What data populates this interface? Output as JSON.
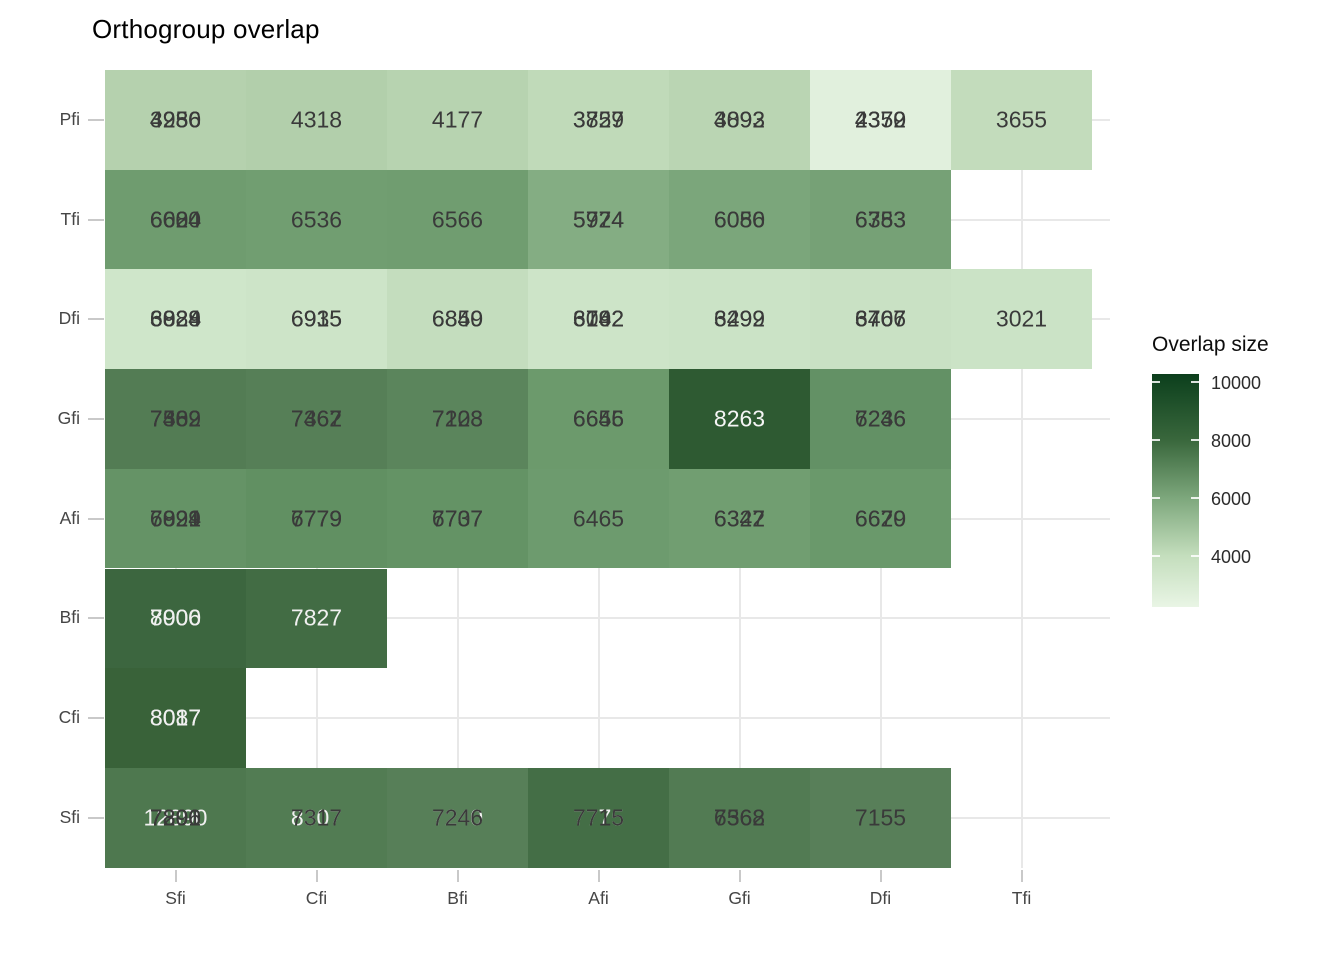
{
  "title": "Orthogroup overlap",
  "legend": {
    "title": "Overlap size",
    "tick_labels": [
      "10000",
      "8000",
      "6000",
      "4000"
    ],
    "gradient_dark": "#0c3e1c",
    "gradient_mid": "#7da77c",
    "gradient_light": "#e9f5e5"
  },
  "chart_data": {
    "type": "heatmap",
    "title": "Orthogroup overlap",
    "legend_title": "Overlap size",
    "x_categories": [
      "Sfi",
      "Cfi",
      "Bfi",
      "Afi",
      "Gfi",
      "Dfi",
      "Tfi"
    ],
    "y_categories": [
      "Pfi",
      "Tfi",
      "Dfi",
      "Gfi",
      "Afi",
      "Bfi",
      "Cfi",
      "Sfi"
    ],
    "colorbar_ticks": [
      10000,
      8000,
      6000,
      4000
    ],
    "grid": true,
    "legend_position": "right",
    "note": "Cells contain overplotted value labels drawn on top of each other; labels listed bottom-first in draw order.",
    "cells": [
      {
        "row": "Pfi",
        "col": "Sfi",
        "bg": "#b5d1ae",
        "labels": [
          {
            "text": "4250",
            "color": "#3a3a3a"
          },
          {
            "text": "3986",
            "color": "#3a3a3a"
          },
          {
            "text": "4236",
            "color": "#3a3a3a"
          }
        ]
      },
      {
        "row": "Pfi",
        "col": "Cfi",
        "bg": "#b2cfab",
        "labels": [
          {
            "text": "4318",
            "color": "#3a3a3a"
          }
        ]
      },
      {
        "row": "Pfi",
        "col": "Bfi",
        "bg": "#b7d3b0",
        "labels": [
          {
            "text": "4177",
            "color": "#3a3a3a"
          }
        ]
      },
      {
        "row": "Pfi",
        "col": "Afi",
        "bg": "#c0dab9",
        "labels": [
          {
            "text": "3829",
            "color": "#3a3a3a"
          },
          {
            "text": "3757",
            "color": "#3a3a3a"
          }
        ]
      },
      {
        "row": "Pfi",
        "col": "Gfi",
        "bg": "#bad5b3",
        "labels": [
          {
            "text": "4092",
            "color": "#3a3a3a"
          },
          {
            "text": "3893",
            "color": "#3a3a3a"
          }
        ]
      },
      {
        "row": "Pfi",
        "col": "Dfi",
        "bg": "#e1f0dd",
        "labels": [
          {
            "text": "4379",
            "color": "#3a3a3a"
          },
          {
            "text": "4352",
            "color": "#3a3a3a"
          },
          {
            "text": "2370",
            "color": "#3a3a3a"
          }
        ]
      },
      {
        "row": "Pfi",
        "col": "Tfi",
        "bg": "#c3dcbc",
        "labels": [
          {
            "text": "3655",
            "color": "#3a3a3a"
          }
        ]
      },
      {
        "row": "Tfi",
        "col": "Sfi",
        "bg": "#6f9c6f",
        "labels": [
          {
            "text": "6600",
            "color": "#3a3a3a"
          },
          {
            "text": "6684",
            "color": "#3a3a3a"
          },
          {
            "text": "6024",
            "color": "#3a3a3a"
          }
        ]
      },
      {
        "row": "Tfi",
        "col": "Cfi",
        "bg": "#719e71",
        "labels": [
          {
            "text": "6536",
            "color": "#3a3a3a"
          }
        ]
      },
      {
        "row": "Tfi",
        "col": "Bfi",
        "bg": "#709d70",
        "labels": [
          {
            "text": "6566",
            "color": "#3a3a3a"
          }
        ]
      },
      {
        "row": "Tfi",
        "col": "Afi",
        "bg": "#84ad83",
        "labels": [
          {
            "text": "5974",
            "color": "#3a3a3a"
          },
          {
            "text": "5724",
            "color": "#3a3a3a"
          }
        ]
      },
      {
        "row": "Tfi",
        "col": "Gfi",
        "bg": "#7ba67b",
        "labels": [
          {
            "text": "6086",
            "color": "#3a3a3a"
          },
          {
            "text": "6050",
            "color": "#3a3a3a"
          }
        ]
      },
      {
        "row": "Tfi",
        "col": "Dfi",
        "bg": "#76a176",
        "labels": [
          {
            "text": "6383",
            "color": "#3a3a3a"
          },
          {
            "text": "6753",
            "color": "#3a3a3a"
          }
        ]
      },
      {
        "row": "Dfi",
        "col": "Sfi",
        "bg": "#cfe6ca",
        "labels": [
          {
            "text": "6888",
            "color": "#3a3a3a"
          },
          {
            "text": "6929",
            "color": "#3a3a3a"
          },
          {
            "text": "6824",
            "color": "#3a3a3a"
          },
          {
            "text": "3024",
            "color": "#3a3a3a"
          }
        ]
      },
      {
        "row": "Dfi",
        "col": "Cfi",
        "bg": "#cde4c8",
        "labels": [
          {
            "text": "6935",
            "color": "#3a3a3a"
          },
          {
            "text": "6915",
            "color": "#3a3a3a"
          }
        ]
      },
      {
        "row": "Dfi",
        "col": "Bfi",
        "bg": "#c4ddbe",
        "labels": [
          {
            "text": "6859",
            "color": "#3a3a3a"
          },
          {
            "text": "6840",
            "color": "#3a3a3a"
          }
        ]
      },
      {
        "row": "Dfi",
        "col": "Afi",
        "bg": "#cde4c8",
        "labels": [
          {
            "text": "6742",
            "color": "#3a3a3a"
          },
          {
            "text": "3062",
            "color": "#3a3a3a"
          },
          {
            "text": "6192",
            "color": "#3a3a3a"
          }
        ]
      },
      {
        "row": "Dfi",
        "col": "Gfi",
        "bg": "#cbe3c6",
        "labels": [
          {
            "text": "6299",
            "color": "#3a3a3a"
          },
          {
            "text": "3492",
            "color": "#3a3a3a"
          }
        ]
      },
      {
        "row": "Dfi",
        "col": "Dfi",
        "bg": "#c9e1c4",
        "labels": [
          {
            "text": "6466",
            "color": "#3a3a3a"
          },
          {
            "text": "3707",
            "color": "#3a3a3a"
          },
          {
            "text": "6767",
            "color": "#3a3a3a"
          }
        ]
      },
      {
        "row": "Dfi",
        "col": "Tfi",
        "bg": "#cbe3c6",
        "labels": [
          {
            "text": "3021",
            "color": "#3a3a3a"
          }
        ]
      },
      {
        "row": "Gfi",
        "col": "Sfi",
        "bg": "#537c54",
        "labels": [
          {
            "text": "7389",
            "color": "#3a3a3a"
          },
          {
            "text": "7462",
            "color": "#3a3a3a"
          },
          {
            "text": "7502",
            "color": "#3a3a3a"
          }
        ]
      },
      {
        "row": "Gfi",
        "col": "Cfi",
        "bg": "#567f57",
        "labels": [
          {
            "text": "7362",
            "color": "#3a3a3a"
          },
          {
            "text": "7467",
            "color": "#3a3a3a"
          }
        ]
      },
      {
        "row": "Gfi",
        "col": "Bfi",
        "bg": "#5b855c",
        "labels": [
          {
            "text": "7208",
            "color": "#3a3a3a"
          },
          {
            "text": "7123",
            "color": "#3a3a3a"
          }
        ]
      },
      {
        "row": "Gfi",
        "col": "Afi",
        "bg": "#6c9a6c",
        "labels": [
          {
            "text": "6655",
            "color": "#3a3a3a"
          },
          {
            "text": "6646",
            "color": "#3a3a3a"
          }
        ]
      },
      {
        "row": "Gfi",
        "col": "Gfi",
        "bg": "#2e5a32",
        "labels": [
          {
            "text": "8263",
            "color": "#f5f5f5"
          }
        ]
      },
      {
        "row": "Gfi",
        "col": "Dfi",
        "bg": "#639165",
        "labels": [
          {
            "text": "6246",
            "color": "#3a3a3a"
          },
          {
            "text": "7236",
            "color": "#3a3a3a"
          }
        ]
      },
      {
        "row": "Afi",
        "col": "Sfi",
        "bg": "#659366",
        "labels": [
          {
            "text": "6899",
            "color": "#3a3a3a"
          },
          {
            "text": "7024",
            "color": "#3a3a3a"
          },
          {
            "text": "6921",
            "color": "#3a3a3a"
          }
        ]
      },
      {
        "row": "Afi",
        "col": "Cfi",
        "bg": "#619062",
        "labels": [
          {
            "text": "6779",
            "color": "#3a3a3a"
          },
          {
            "text": "7779",
            "color": "#3a3a3a"
          }
        ]
      },
      {
        "row": "Afi",
        "col": "Bfi",
        "bg": "#649365",
        "labels": [
          {
            "text": "6707",
            "color": "#3a3a3a"
          },
          {
            "text": "7737",
            "color": "#3a3a3a"
          }
        ]
      },
      {
        "row": "Afi",
        "col": "Afi",
        "bg": "#6d9b6e",
        "labels": [
          {
            "text": "6465",
            "color": "#3a3a3a"
          }
        ]
      },
      {
        "row": "Afi",
        "col": "Gfi",
        "bg": "#719e71",
        "labels": [
          {
            "text": "6327",
            "color": "#3a3a3a"
          },
          {
            "text": "6342",
            "color": "#3a3a3a"
          }
        ]
      },
      {
        "row": "Afi",
        "col": "Dfi",
        "bg": "#6a996b",
        "labels": [
          {
            "text": "6679",
            "color": "#3a3a3a"
          },
          {
            "text": "6620",
            "color": "#3a3a3a"
          }
        ]
      },
      {
        "row": "Bfi",
        "col": "Sfi",
        "bg": "#3c663f",
        "labels": [
          {
            "text": "7900",
            "color": "#f0f0f0"
          },
          {
            "text": "8006",
            "color": "#f0f0f0"
          }
        ]
      },
      {
        "row": "Bfi",
        "col": "Cfi",
        "bg": "#426c44",
        "labels": [
          {
            "text": "7827",
            "color": "#f0f0f0"
          }
        ]
      },
      {
        "row": "Cfi",
        "col": "Sfi",
        "bg": "#396239",
        "labels": [
          {
            "text": "8087",
            "color": "#f0f0f0"
          },
          {
            "text": "8017",
            "color": "#f0f0f0"
          }
        ]
      },
      {
        "row": "Sfi",
        "col": "Sfi",
        "bg": "#4e784f",
        "labels": [
          {
            "text": "12890",
            "color": "#f0f0f0"
          },
          {
            "text": "7390",
            "color": "#3a3a3a"
          },
          {
            "text": "7896",
            "color": "#3a3a3a"
          },
          {
            "text": "7201",
            "color": "#3a3a3a"
          }
        ]
      },
      {
        "row": "Sfi",
        "col": "Cfi",
        "bg": "#527c53",
        "labels": [
          {
            "text": "8307",
            "color": "#f0f0f0"
          },
          {
            "text": "7317",
            "color": "#3a3a3a"
          }
        ]
      },
      {
        "row": "Sfi",
        "col": "Bfi",
        "bg": "#577f58",
        "labels": [
          {
            "text": "7240",
            "color": "#f0f0f0"
          },
          {
            "text": "7246",
            "color": "#3a3a3a"
          }
        ]
      },
      {
        "row": "Sfi",
        "col": "Afi",
        "bg": "#446e46",
        "labels": [
          {
            "text": "7775",
            "color": "#f0f0f0"
          },
          {
            "text": "7715",
            "color": "#3a3a3a"
          }
        ]
      },
      {
        "row": "Sfi",
        "col": "Gfi",
        "bg": "#527b53",
        "labels": [
          {
            "text": "7368",
            "color": "#3a3a3a"
          },
          {
            "text": "6562",
            "color": "#3a3a3a"
          }
        ]
      },
      {
        "row": "Sfi",
        "col": "Dfi",
        "bg": "#587f59",
        "labels": [
          {
            "text": "7155",
            "color": "#3a3a3a"
          }
        ]
      }
    ]
  }
}
